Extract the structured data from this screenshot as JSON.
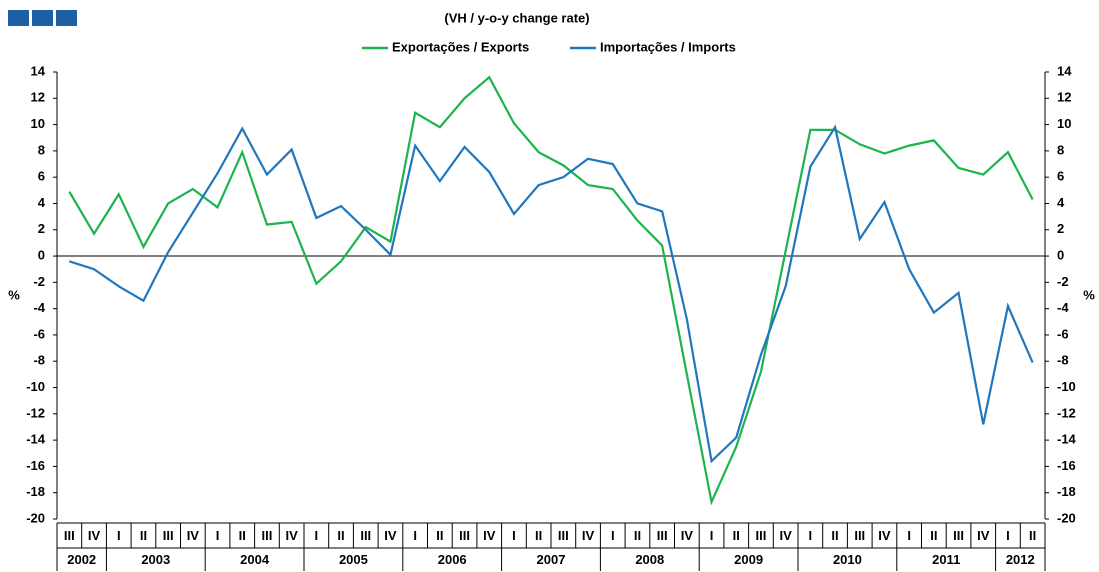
{
  "chart_data": {
    "type": "line",
    "title": "(VH / y-o-y change rate)",
    "y_label": "%",
    "y2_label": "%",
    "categories": [
      "III",
      "IV",
      "I",
      "II",
      "III",
      "IV",
      "I",
      "II",
      "III",
      "IV",
      "I",
      "II",
      "III",
      "IV",
      "I",
      "II",
      "III",
      "IV",
      "I",
      "II",
      "III",
      "IV",
      "I",
      "II",
      "III",
      "IV",
      "I",
      "II",
      "III",
      "IV",
      "I",
      "II",
      "III",
      "IV",
      "I",
      "II",
      "III",
      "IV",
      "I",
      "II"
    ],
    "years": [
      "2002",
      "2003",
      "2004",
      "2005",
      "2006",
      "2007",
      "2008",
      "2009",
      "2010",
      "2011",
      "2012"
    ],
    "series": [
      {
        "name": "Exportações / Exports",
        "color": "#1db34f",
        "values": [
          4.9,
          1.7,
          4.7,
          0.7,
          4.0,
          5.1,
          3.7,
          7.9,
          2.4,
          2.6,
          -2.1,
          -0.4,
          2.2,
          1.1,
          10.9,
          9.8,
          12.0,
          13.6,
          10.1,
          7.9,
          6.9,
          5.4,
          5.1,
          2.7,
          0.8,
          -9.0,
          -18.7,
          -14.5,
          -8.8,
          0.4,
          9.6,
          9.6,
          8.5,
          7.8,
          8.4,
          8.8,
          6.7,
          6.2,
          7.9,
          4.3
        ]
      },
      {
        "name": "Importações / Imports",
        "color": "#1f77c0",
        "values": [
          -0.4,
          -1.0,
          -2.3,
          -3.4,
          0.3,
          3.3,
          6.3,
          9.7,
          6.2,
          8.1,
          2.9,
          3.8,
          2.0,
          0.1,
          8.4,
          5.7,
          8.3,
          6.4,
          3.2,
          5.4,
          6.0,
          7.4,
          7.0,
          4.0,
          3.4,
          -4.8,
          -15.6,
          -13.8,
          -7.5,
          -2.3,
          6.8,
          9.8,
          1.3,
          4.1,
          -1.0,
          -4.3,
          -2.8,
          -12.8,
          -3.8,
          -8.1
        ]
      }
    ],
    "ylim": [
      -20,
      14
    ],
    "yticks": [
      -20,
      -18,
      -16,
      -14,
      -12,
      -10,
      -8,
      -6,
      -4,
      -2,
      0,
      2,
      4,
      6,
      8,
      10,
      12,
      14
    ],
    "legend": "top"
  }
}
